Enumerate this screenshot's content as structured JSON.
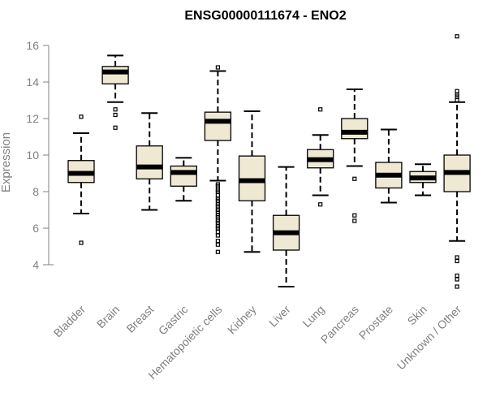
{
  "chart_data": {
    "type": "boxplot",
    "title": "ENSG00000111674 - ENO2",
    "ylabel": "Expression",
    "xlabel": "",
    "ylim": [
      2.4,
      16.5
    ],
    "yticks": [
      4,
      6,
      8,
      10,
      12,
      14,
      16
    ],
    "grid": false,
    "colors": {
      "box_fill": "#efe9d4",
      "median": "#000000",
      "axis": "#808080",
      "text": "#808080"
    },
    "categories": [
      "Bladder",
      "Brain",
      "Breast",
      "Gastric",
      "Hematopoietic cells",
      "Kidney",
      "Liver",
      "Lung",
      "Pancreas",
      "Prostate",
      "Skin",
      "Unknown / Other"
    ],
    "boxes": [
      {
        "category": "Bladder",
        "whisker_low": 6.8,
        "q1": 8.5,
        "median": 9.0,
        "q3": 9.7,
        "whisker_high": 11.2,
        "outliers": [
          12.1,
          5.2
        ]
      },
      {
        "category": "Brain",
        "whisker_low": 12.9,
        "q1": 13.9,
        "median": 14.55,
        "q3": 14.85,
        "whisker_high": 15.45,
        "outliers": [
          12.5,
          12.2,
          11.5
        ]
      },
      {
        "category": "Breast",
        "whisker_low": 7.0,
        "q1": 8.7,
        "median": 9.35,
        "q3": 10.5,
        "whisker_high": 12.3,
        "outliers": []
      },
      {
        "category": "Gastric",
        "whisker_low": 7.5,
        "q1": 8.3,
        "median": 9.05,
        "q3": 9.4,
        "whisker_high": 9.85,
        "outliers": []
      },
      {
        "category": "Hematopoietic cells",
        "whisker_low": 8.6,
        "q1": 10.8,
        "median": 11.85,
        "q3": 12.35,
        "whisker_high": 14.6,
        "outliers": [
          14.8,
          8.4,
          8.3,
          8.1,
          8.0,
          7.8,
          7.6,
          7.5,
          7.3,
          7.2,
          7.0,
          6.9,
          6.7,
          6.6,
          6.4,
          6.3,
          6.1,
          6.0,
          5.8,
          5.6,
          5.3,
          5.1,
          4.7
        ]
      },
      {
        "category": "Kidney",
        "whisker_low": 4.7,
        "q1": 7.5,
        "median": 8.6,
        "q3": 9.95,
        "whisker_high": 12.4,
        "outliers": []
      },
      {
        "category": "Liver",
        "whisker_low": 2.8,
        "q1": 4.8,
        "median": 5.75,
        "q3": 6.7,
        "whisker_high": 9.35,
        "outliers": []
      },
      {
        "category": "Lung",
        "whisker_low": 7.8,
        "q1": 9.3,
        "median": 9.75,
        "q3": 10.3,
        "whisker_high": 11.1,
        "outliers": [
          12.5,
          7.3
        ]
      },
      {
        "category": "Pancreas",
        "whisker_low": 9.4,
        "q1": 10.9,
        "median": 11.25,
        "q3": 12.0,
        "whisker_high": 13.6,
        "outliers": [
          8.7,
          6.7,
          6.4
        ]
      },
      {
        "category": "Prostate",
        "whisker_low": 7.4,
        "q1": 8.2,
        "median": 8.9,
        "q3": 9.6,
        "whisker_high": 11.4,
        "outliers": []
      },
      {
        "category": "Skin",
        "whisker_low": 7.8,
        "q1": 8.5,
        "median": 8.75,
        "q3": 9.1,
        "whisker_high": 9.5,
        "outliers": []
      },
      {
        "category": "Unknown / Other",
        "whisker_low": 5.3,
        "q1": 8.0,
        "median": 9.05,
        "q3": 10.0,
        "whisker_high": 12.9,
        "outliers": [
          16.5,
          13.5,
          13.3,
          13.2,
          13.0,
          4.4,
          4.2,
          3.4,
          3.2,
          2.8
        ]
      }
    ]
  }
}
